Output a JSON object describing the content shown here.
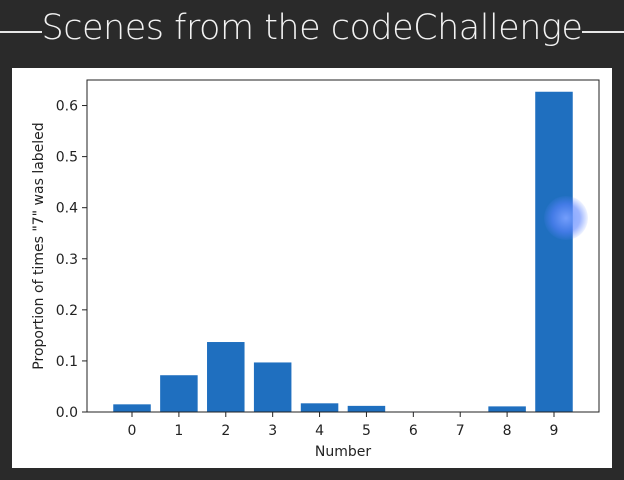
{
  "header": {
    "title": "Scenes from the codeChallenge"
  },
  "colors": {
    "bar": "#1f6fbf",
    "background": "#2a2a2a",
    "panel": "#ffffff"
  },
  "chart_data": {
    "type": "bar",
    "categories": [
      "0",
      "1",
      "2",
      "3",
      "4",
      "5",
      "6",
      "7",
      "8",
      "9"
    ],
    "values": [
      0.015,
      0.072,
      0.137,
      0.097,
      0.017,
      0.012,
      0.001,
      0.0,
      0.011,
      0.627
    ],
    "title": "",
    "xlabel": "Number",
    "ylabel": "Proportion of times \"7\" was labeled",
    "ylim": [
      0,
      0.65
    ],
    "yticks": [
      "0.0",
      "0.1",
      "0.2",
      "0.3",
      "0.4",
      "0.5",
      "0.6"
    ],
    "grid": false
  }
}
